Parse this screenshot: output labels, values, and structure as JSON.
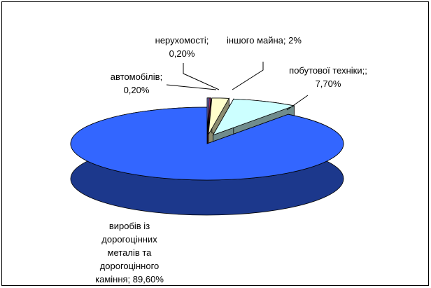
{
  "chart_data": {
    "type": "pie3d",
    "categories": [
      "автомобілів;",
      "нерухомості;",
      "іншого майна;",
      "побутової техніки;;",
      "виробів із дорогоцінних металів та дорогоцінного каміння;"
    ],
    "values": [
      0.2,
      0.2,
      2,
      7.7,
      89.6
    ],
    "value_labels": [
      "0,20%",
      "0,20%",
      "2%",
      "7,70%",
      "89,60%"
    ],
    "colors": [
      "#9999ff",
      "#993366",
      "#ffffcc",
      "#ccffff",
      "#3366ff"
    ]
  }
}
